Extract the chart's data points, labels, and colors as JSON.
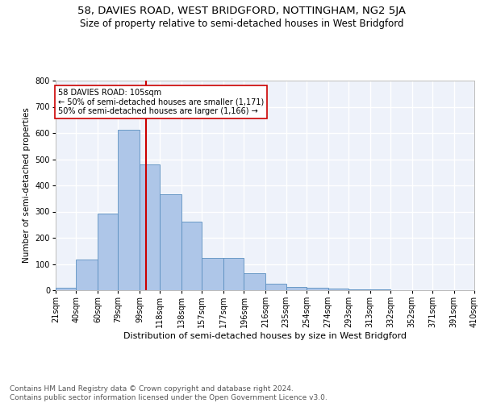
{
  "title1": "58, DAVIES ROAD, WEST BRIDGFORD, NOTTINGHAM, NG2 5JA",
  "title2": "Size of property relative to semi-detached houses in West Bridgford",
  "xlabel": "Distribution of semi-detached houses by size in West Bridgford",
  "ylabel": "Number of semi-detached properties",
  "bar_values": [
    8,
    118,
    293,
    611,
    481,
    366,
    263,
    122,
    123,
    65,
    25,
    13,
    8,
    5,
    4,
    2,
    1,
    1,
    1,
    0
  ],
  "bin_labels": [
    "21sqm",
    "40sqm",
    "60sqm",
    "79sqm",
    "99sqm",
    "118sqm",
    "138sqm",
    "157sqm",
    "177sqm",
    "196sqm",
    "216sqm",
    "235sqm",
    "254sqm",
    "274sqm",
    "293sqm",
    "313sqm",
    "332sqm",
    "352sqm",
    "371sqm",
    "391sqm",
    "410sqm"
  ],
  "bin_edges": [
    21,
    40,
    60,
    79,
    99,
    118,
    138,
    157,
    177,
    196,
    216,
    235,
    254,
    274,
    293,
    313,
    332,
    352,
    371,
    391,
    410
  ],
  "bar_color": "#aec6e8",
  "bar_edge_color": "#5a8fc0",
  "vline_x": 105,
  "vline_color": "#cc0000",
  "annotation_text": "58 DAVIES ROAD: 105sqm\n← 50% of semi-detached houses are smaller (1,171)\n50% of semi-detached houses are larger (1,166) →",
  "annotation_box_color": "#ffffff",
  "annotation_box_edge": "#cc0000",
  "ylim": [
    0,
    800
  ],
  "yticks": [
    0,
    100,
    200,
    300,
    400,
    500,
    600,
    700,
    800
  ],
  "footer_text": "Contains HM Land Registry data © Crown copyright and database right 2024.\nContains public sector information licensed under the Open Government Licence v3.0.",
  "background_color": "#eef2fa",
  "grid_color": "#ffffff",
  "title1_fontsize": 9.5,
  "title2_fontsize": 8.5,
  "xlabel_fontsize": 8,
  "ylabel_fontsize": 7.5,
  "tick_fontsize": 7,
  "footer_fontsize": 6.5,
  "annot_fontsize": 7
}
